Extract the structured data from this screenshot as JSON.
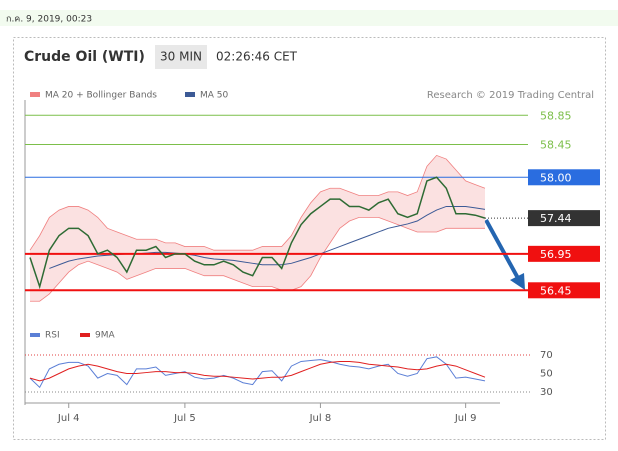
{
  "header": {
    "timestamp": "ก.ค. 9, 2019, 00:23"
  },
  "chart_data": {
    "type": "line",
    "title": "Crude Oil (WTI)",
    "timeframe": "30 MIN",
    "time": "02:26:46 CET",
    "credit": "Research © 2019 Trading Central",
    "categories": [
      null,
      null,
      null,
      null,
      "Jul 4",
      null,
      null,
      null,
      null,
      null,
      null,
      null,
      null,
      null,
      null,
      null,
      "Jul 5",
      null,
      null,
      null,
      null,
      null,
      null,
      null,
      null,
      null,
      null,
      null,
      null,
      null,
      "Jul 8",
      null,
      null,
      null,
      null,
      null,
      null,
      null,
      null,
      null,
      null,
      null,
      null,
      null,
      null,
      "Jul 9",
      null,
      null
    ],
    "ylim": [
      56.07,
      59.06
    ],
    "price": {
      "color": "#2e6b34",
      "values": [
        56.9,
        56.5,
        57.0,
        57.2,
        57.3,
        57.3,
        57.2,
        56.95,
        57.0,
        56.9,
        56.7,
        57.0,
        57.0,
        57.05,
        56.9,
        56.95,
        56.95,
        56.85,
        56.8,
        56.8,
        56.85,
        56.8,
        56.7,
        56.65,
        56.9,
        56.9,
        56.75,
        57.1,
        57.35,
        57.5,
        57.6,
        57.7,
        57.7,
        57.6,
        57.6,
        57.55,
        57.65,
        57.7,
        57.5,
        57.45,
        57.5,
        57.95,
        58.0,
        57.85,
        57.5,
        57.5,
        57.48,
        57.44
      ]
    },
    "series": [
      {
        "name": "MA 20 + Bollinger Bands",
        "color": "#f08080",
        "upper": [
          57.0,
          57.2,
          57.45,
          57.55,
          57.6,
          57.6,
          57.55,
          57.45,
          57.3,
          57.25,
          57.2,
          57.15,
          57.15,
          57.15,
          57.1,
          57.1,
          57.05,
          57.05,
          57.05,
          57.0,
          57.0,
          57.0,
          57.0,
          57.0,
          57.05,
          57.05,
          57.05,
          57.2,
          57.45,
          57.65,
          57.8,
          57.85,
          57.85,
          57.8,
          57.75,
          57.75,
          57.75,
          57.8,
          57.8,
          57.75,
          57.8,
          58.15,
          58.3,
          58.25,
          58.1,
          57.95,
          57.9,
          57.85
        ],
        "lower": [
          56.3,
          56.3,
          56.4,
          56.55,
          56.7,
          56.8,
          56.85,
          56.8,
          56.75,
          56.7,
          56.6,
          56.65,
          56.7,
          56.75,
          56.75,
          56.75,
          56.75,
          56.7,
          56.65,
          56.65,
          56.65,
          56.6,
          56.55,
          56.5,
          56.5,
          56.5,
          56.45,
          56.45,
          56.5,
          56.65,
          56.9,
          57.1,
          57.3,
          57.4,
          57.45,
          57.45,
          57.45,
          57.4,
          57.35,
          57.3,
          57.25,
          57.25,
          57.25,
          57.3,
          57.3,
          57.3,
          57.3,
          57.3
        ]
      },
      {
        "name": "MA 50",
        "color": "#3c5a96",
        "values": [
          null,
          null,
          56.75,
          56.8,
          56.85,
          56.88,
          56.9,
          56.92,
          56.93,
          56.94,
          56.95,
          56.95,
          56.96,
          56.97,
          56.97,
          56.96,
          56.95,
          56.93,
          56.9,
          56.88,
          56.87,
          56.86,
          56.84,
          56.82,
          56.8,
          56.8,
          56.8,
          56.82,
          56.86,
          56.9,
          56.95,
          57.0,
          57.05,
          57.1,
          57.15,
          57.2,
          57.25,
          57.3,
          57.33,
          57.36,
          57.4,
          57.48,
          57.55,
          57.6,
          57.6,
          57.6,
          57.58,
          57.56
        ]
      }
    ],
    "levels": [
      {
        "value": 58.85,
        "color": "#7cbf4a",
        "box": false
      },
      {
        "value": 58.45,
        "color": "#7cbf4a",
        "box": false
      },
      {
        "value": 58,
        "label": "58.00",
        "color": "#2a6de0",
        "box": true
      },
      {
        "value": 57.44,
        "color": "#333333",
        "box": true,
        "dotted": true
      },
      {
        "value": 56.95,
        "color": "#f01010",
        "box": true
      },
      {
        "value": 56.45,
        "color": "#f01010",
        "box": true
      }
    ],
    "rsi": {
      "ylim": [
        23.5,
        80.8
      ],
      "yticks": [
        70,
        50,
        30
      ],
      "series": [
        {
          "name": "RSI",
          "color": "#5b7fd6",
          "values": [
            45,
            35,
            55,
            60,
            62,
            62,
            58,
            45,
            50,
            48,
            38,
            55,
            55,
            57,
            48,
            50,
            52,
            46,
            44,
            45,
            48,
            45,
            40,
            38,
            52,
            53,
            42,
            58,
            63,
            64,
            65,
            63,
            60,
            58,
            57,
            55,
            58,
            60,
            50,
            47,
            50,
            66,
            68,
            60,
            45,
            46,
            44,
            42
          ]
        },
        {
          "name": "9MA",
          "color": "#e02020",
          "values": [
            45,
            42,
            45,
            50,
            55,
            58,
            60,
            58,
            55,
            52,
            50,
            50,
            51,
            52,
            52,
            51,
            51,
            50,
            48,
            47,
            47,
            46,
            45,
            44,
            45,
            46,
            46,
            48,
            52,
            56,
            60,
            62,
            63,
            63,
            62,
            60,
            59,
            58,
            57,
            55,
            54,
            55,
            58,
            60,
            58,
            54,
            50,
            46
          ]
        }
      ]
    }
  }
}
